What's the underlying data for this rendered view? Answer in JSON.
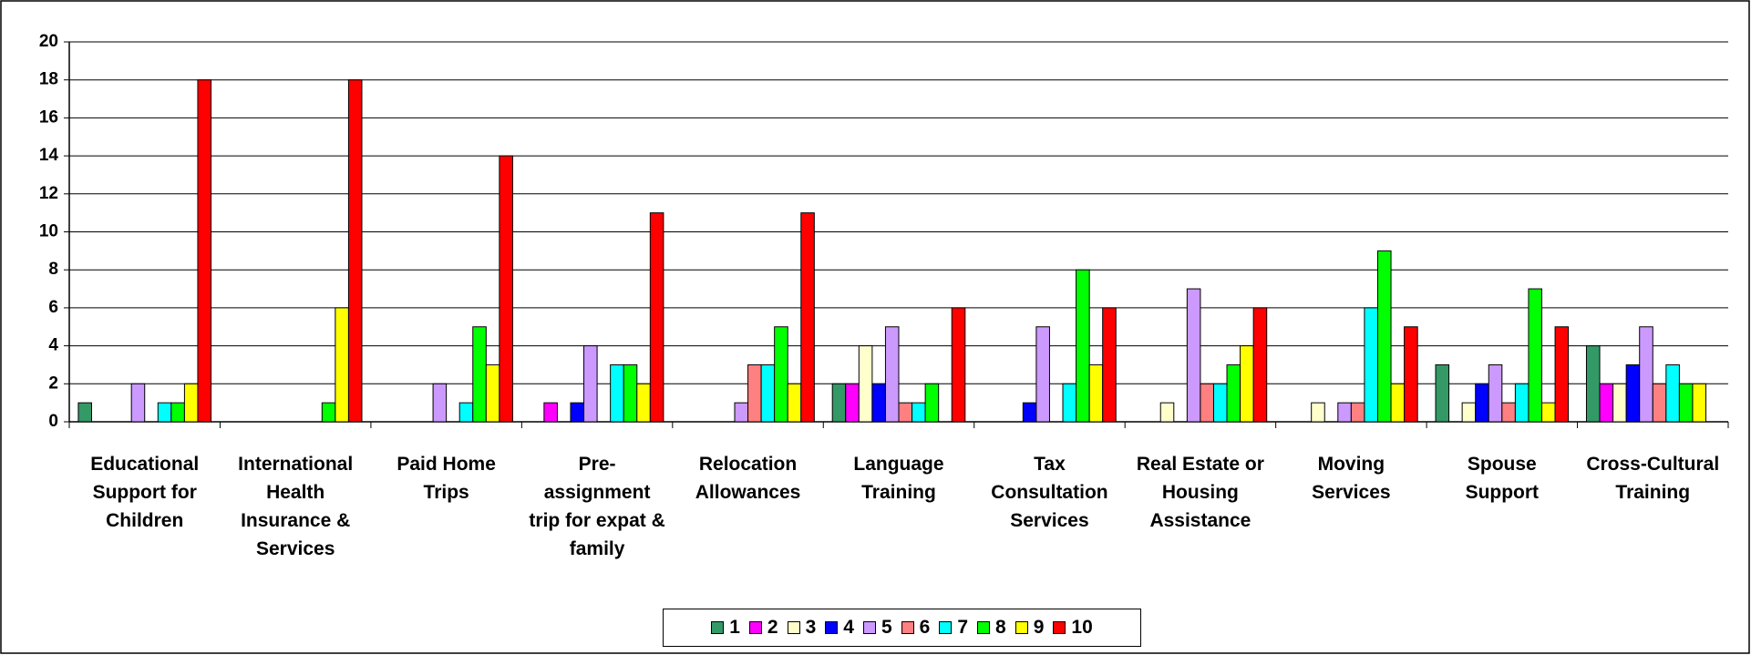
{
  "chart_data": {
    "type": "bar",
    "categories": [
      "Educational Support for Children",
      "International Health Insurance & Services",
      "Paid Home Trips",
      "Pre-assignment trip for expat & family",
      "Relocation Allowances",
      "Language Training",
      "Tax Consultation Services",
      "Real Estate or Housing Assistance",
      "Moving Services",
      "Spouse Support",
      "Cross-Cultural Training"
    ],
    "series": [
      {
        "name": "1",
        "color": "#339966",
        "values": [
          1,
          0,
          0,
          0,
          0,
          2,
          0,
          0,
          0,
          3,
          4
        ]
      },
      {
        "name": "2",
        "color": "#ff00ff",
        "values": [
          0,
          0,
          0,
          1,
          0,
          2,
          0,
          0,
          0,
          0,
          2
        ]
      },
      {
        "name": "3",
        "color": "#ffffcc",
        "values": [
          0,
          0,
          0,
          0,
          0,
          4,
          0,
          1,
          1,
          1,
          2
        ]
      },
      {
        "name": "4",
        "color": "#0000ff",
        "values": [
          0,
          0,
          0,
          1,
          0,
          2,
          1,
          0,
          0,
          2,
          3
        ]
      },
      {
        "name": "5",
        "color": "#cc99ff",
        "values": [
          2,
          0,
          2,
          4,
          1,
          5,
          5,
          7,
          1,
          3,
          5
        ]
      },
      {
        "name": "6",
        "color": "#ff8080",
        "values": [
          0,
          0,
          0,
          0,
          3,
          1,
          0,
          2,
          1,
          1,
          2
        ]
      },
      {
        "name": "7",
        "color": "#00ffff",
        "values": [
          1,
          0,
          1,
          3,
          3,
          1,
          2,
          2,
          6,
          2,
          3
        ]
      },
      {
        "name": "8",
        "color": "#00ff00",
        "values": [
          1,
          1,
          5,
          3,
          5,
          2,
          8,
          3,
          9,
          7,
          2
        ]
      },
      {
        "name": "9",
        "color": "#ffff00",
        "values": [
          2,
          6,
          3,
          2,
          2,
          0,
          3,
          4,
          2,
          1,
          2
        ]
      },
      {
        "name": "10",
        "color": "#ff0000",
        "values": [
          18,
          18,
          14,
          11,
          11,
          6,
          6,
          6,
          5,
          5,
          0
        ]
      }
    ],
    "ylim": [
      0,
      20
    ],
    "yticks": [
      0,
      2,
      4,
      6,
      8,
      10,
      12,
      14,
      16,
      18,
      20
    ],
    "grid": true,
    "legend": "bottom"
  }
}
